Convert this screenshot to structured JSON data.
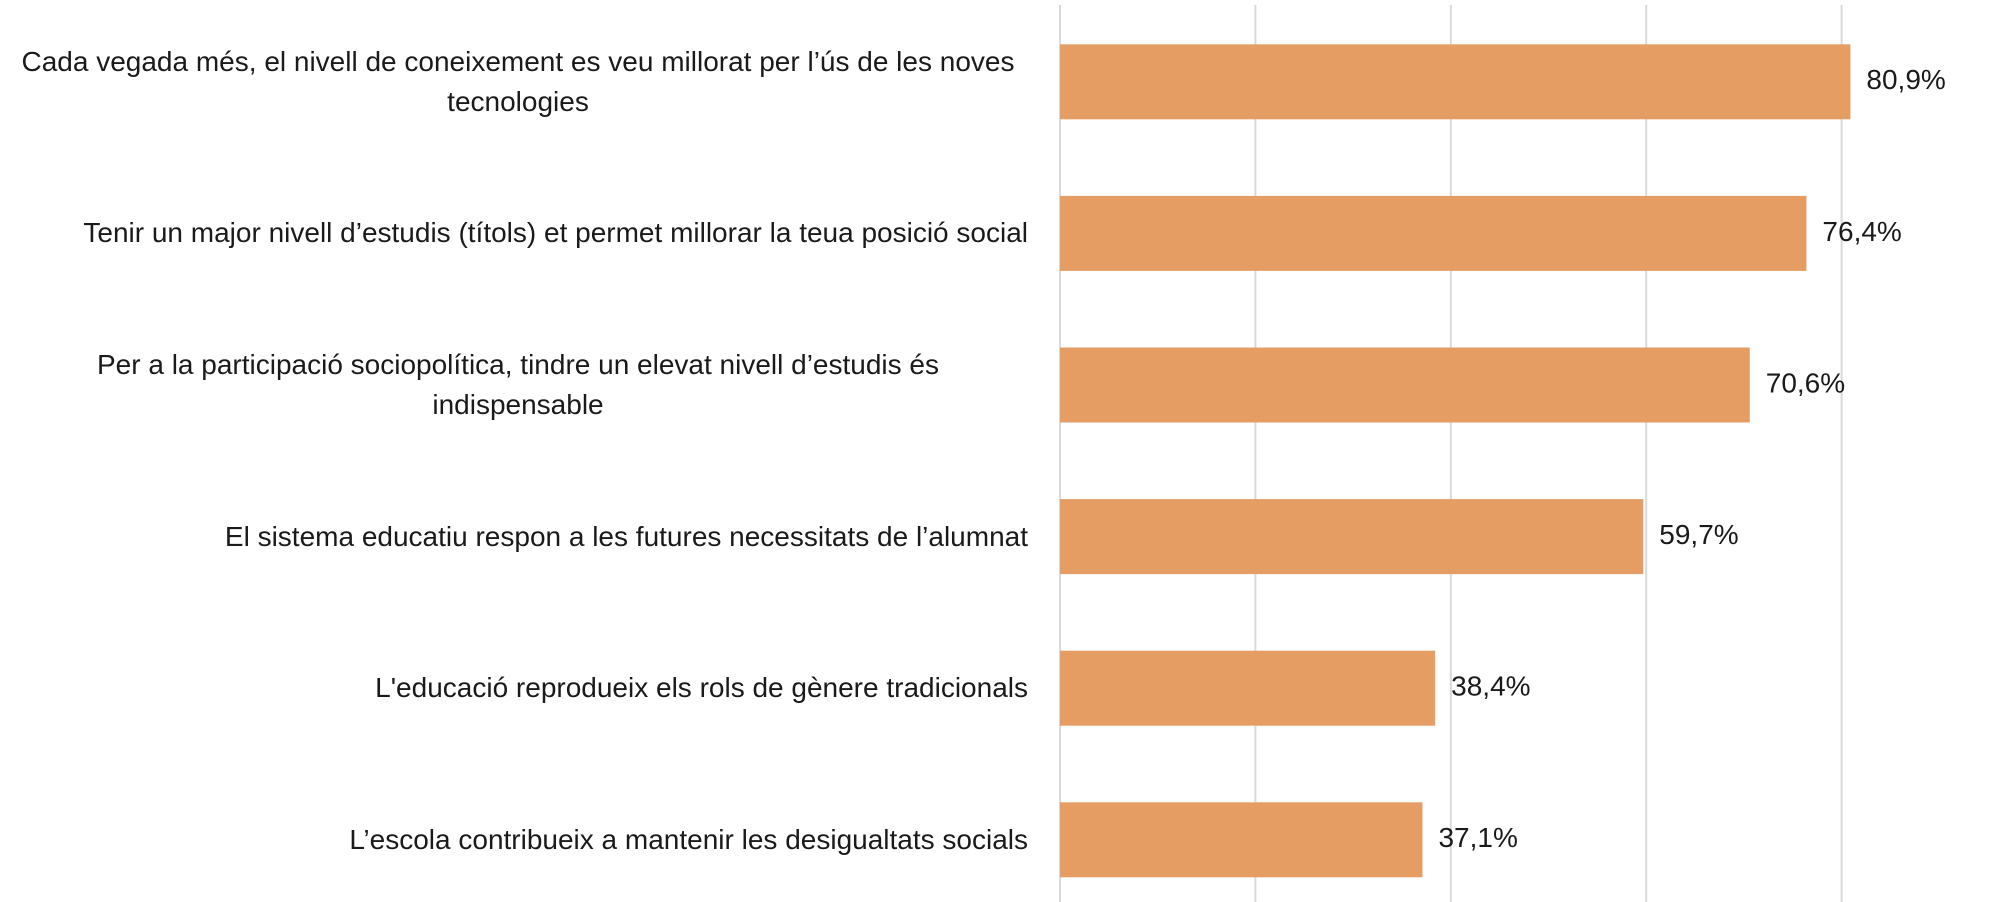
{
  "chart_data": {
    "type": "bar",
    "orientation": "horizontal",
    "categories": [
      "Cada vegada més, el nivell de coneixement es veu millorat per l’ús de les noves tecnologies",
      "Tenir un major nivell d’estudis (títols) et permet millorar la teua posició social",
      "Per a la participació sociopolítica, tindre un elevat nivell d’estudis és indispensable",
      "El sistema educatiu respon a les futures necessitats de l’alumnat",
      "L'educació reprodueix els rols de gènere tradicionals",
      "L’escola contribueix a mantenir les desigualtats socials"
    ],
    "values": [
      80.9,
      76.4,
      70.6,
      59.7,
      38.4,
      37.1
    ],
    "value_labels": [
      "80,9%",
      "76,4%",
      "70,6%",
      "59,7%",
      "38,4%",
      "37,1%"
    ],
    "color": "#e59d64",
    "xlim": [
      0,
      100
    ],
    "xticks": [
      0,
      20,
      40,
      60,
      80
    ],
    "grid": true
  }
}
